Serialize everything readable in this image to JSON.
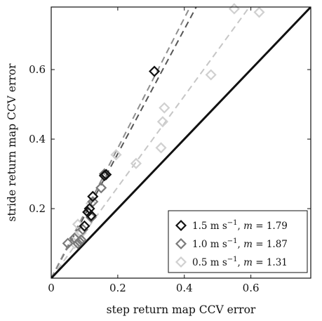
{
  "chart_data": {
    "type": "scatter",
    "xlabel": "step return map CCV error",
    "ylabel": "stride return map CCV error",
    "xlim": [
      0,
      0.78
    ],
    "ylim": [
      0,
      0.78
    ],
    "x_ticks": [
      0,
      0.2,
      0.4,
      0.6
    ],
    "y_ticks": [
      0.2,
      0.4,
      0.6
    ],
    "x_tick_labels": [
      "0",
      "0.2",
      "0.4",
      "0.6"
    ],
    "y_tick_labels": [
      "0.2",
      "0.4",
      "0.6"
    ],
    "identity_line": true,
    "legend_position": "bottom-right",
    "series": [
      {
        "name": "1.5 m s⁻¹, m = 1.79",
        "label_speed": "1.5",
        "label_slope": "1.79",
        "slope": 1.79,
        "color": "#111111",
        "line_color": "#555555",
        "points": [
          [
            0.1,
            0.15
          ],
          [
            0.11,
            0.19
          ],
          [
            0.115,
            0.2
          ],
          [
            0.12,
            0.18
          ],
          [
            0.125,
            0.235
          ],
          [
            0.16,
            0.295
          ],
          [
            0.165,
            0.298
          ],
          [
            0.31,
            0.595
          ]
        ]
      },
      {
        "name": "1.0 m s⁻¹, m = 1.87",
        "label_speed": "1.0",
        "label_slope": "1.87",
        "slope": 1.87,
        "color": "#7a7a7a",
        "line_color": "#8e8e8e",
        "points": [
          [
            0.05,
            0.1
          ],
          [
            0.07,
            0.115
          ],
          [
            0.08,
            0.1
          ],
          [
            0.085,
            0.105
          ],
          [
            0.09,
            0.11
          ],
          [
            0.095,
            0.14
          ],
          [
            0.12,
            0.175
          ],
          [
            0.125,
            0.22
          ],
          [
            0.15,
            0.26
          ],
          [
            0.16,
            0.3
          ]
        ]
      },
      {
        "name": "0.5 m s⁻¹, m = 1.31",
        "label_speed": "0.5",
        "label_slope": "1.31",
        "slope": 1.31,
        "color": "#d0d0d0",
        "line_color": "#c6c6c6",
        "points": [
          [
            0.07,
            0.1
          ],
          [
            0.075,
            0.12
          ],
          [
            0.08,
            0.155
          ],
          [
            0.09,
            0.13
          ],
          [
            0.11,
            0.19
          ],
          [
            0.12,
            0.215
          ],
          [
            0.195,
            0.355
          ],
          [
            0.255,
            0.33
          ],
          [
            0.33,
            0.375
          ],
          [
            0.335,
            0.45
          ],
          [
            0.34,
            0.49
          ],
          [
            0.48,
            0.585
          ],
          [
            0.55,
            0.775
          ],
          [
            0.625,
            0.765
          ]
        ]
      }
    ]
  }
}
